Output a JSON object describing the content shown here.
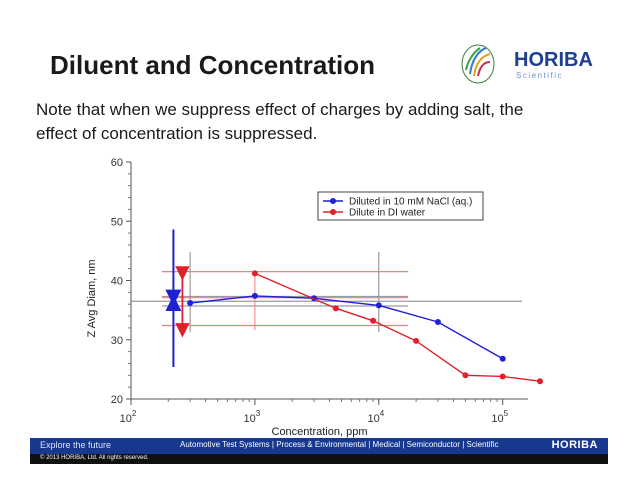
{
  "slide": {
    "title": "Diluent and Concentration",
    "note": "Note that when we suppress effect of charges by adding salt, the effect of concentration is suppressed."
  },
  "logo": {
    "brand": "HORIBA",
    "sub": "Scientific",
    "brand_color": "#1f3f8f"
  },
  "footer": {
    "left": "Explore the future",
    "center": "Automotive Test Systems | Process & Environmental | Medical | Semiconductor | Scientific",
    "brand": "HORIBA",
    "copyright": "© 2013 HORIBA, Ltd. All rights reserved."
  },
  "chart_data": {
    "type": "scatter",
    "xlabel": "Concentration, ppm",
    "ylabel": "Z Avg Diam, nm",
    "xscale": "log",
    "xlim": [
      100,
      160000
    ],
    "ylim": [
      20,
      60
    ],
    "x_ticks": [
      {
        "value": 100,
        "base": "10",
        "exp": "2"
      },
      {
        "value": 1000,
        "base": "10",
        "exp": "3"
      },
      {
        "value": 10000,
        "base": "10",
        "exp": "4"
      },
      {
        "value": 100000,
        "base": "10",
        "exp": "5"
      }
    ],
    "y_ticks": [
      20,
      30,
      40,
      50,
      60
    ],
    "legend_position": "top-right",
    "series": [
      {
        "name": "Diluted in 10 mM NaCl (aq.)",
        "color": "#1f1fd6",
        "x": [
          300,
          1000,
          3000,
          10000,
          30000,
          100000
        ],
        "y": [
          36.2,
          37.4,
          37.0,
          35.8,
          33.0,
          26.8
        ]
      },
      {
        "name": "Dilute in DI water",
        "color": "#e0202a",
        "x": [
          1000,
          4500,
          9000,
          20000,
          50000,
          100000,
          200000
        ],
        "y": [
          41.2,
          35.3,
          33.2,
          29.8,
          24.0,
          23.8,
          23.0
        ]
      }
    ],
    "reference_lines": {
      "gray_horizontal_y": [
        36.5,
        37.3,
        35.7
      ],
      "gray_vertical_x": [
        300,
        10000
      ],
      "red_horizontal_y": [
        41.5,
        37.1,
        32.4
      ],
      "red_vertical_x": [
        1000
      ]
    },
    "arrows": {
      "blue_x": 220,
      "blue_up": [
        36.2,
        25.4
      ],
      "blue_down": [
        37.1,
        48.6
      ],
      "red_x": 260,
      "red_span": [
        41.2,
        31.6
      ]
    }
  }
}
